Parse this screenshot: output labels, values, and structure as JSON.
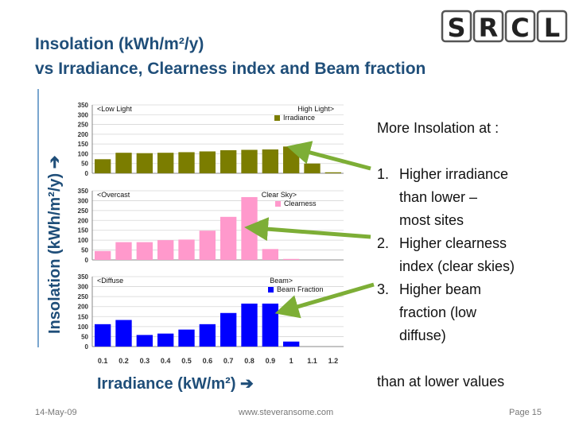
{
  "title": {
    "line1": "Insolation (kWh/m²/y)",
    "line2": "vs Irradiance, Clearness index and Beam fraction"
  },
  "logo": {
    "letters": [
      "S",
      "R",
      "C",
      "L"
    ]
  },
  "y_axis_title": "Insolation (kWh/m²/y)",
  "x_axis_title": "Irradiance (kW/m²)",
  "notes": {
    "intro": "More Insolation at :",
    "items": [
      {
        "num": "1.",
        "lines": [
          "Higher irradiance",
          "than lower –",
          "most sites"
        ]
      },
      {
        "num": "2.",
        "lines": [
          "Higher clearness",
          "index (clear skies)"
        ]
      },
      {
        "num": "3.",
        "lines": [
          "Higher beam",
          "fraction (low",
          "diffuse)"
        ]
      }
    ],
    "outro": "than at lower values"
  },
  "footer": {
    "date": "14-May-09",
    "website": "www.steveransome.com",
    "page": "Page 15"
  },
  "colors": {
    "arrow": "#7dae36",
    "irradiance": "#7b7d00",
    "clearness": "#ff99cc",
    "beam": "#0000ff",
    "title": "#1f4e79"
  },
  "chart_data": [
    {
      "type": "bar",
      "categories": [
        "0.1",
        "0.2",
        "0.3",
        "0.4",
        "0.5",
        "0.6",
        "0.7",
        "0.8",
        "0.9",
        "1",
        "1.1",
        "1.2"
      ],
      "series": [
        {
          "name": "Irradiance",
          "values": [
            72,
            105,
            103,
            105,
            108,
            112,
            118,
            120,
            122,
            137,
            50,
            5
          ]
        }
      ],
      "ylim": [
        0,
        350
      ],
      "yticks": [
        0,
        50,
        100,
        150,
        200,
        250,
        300,
        350
      ],
      "annotations": {
        "left": "<Low Light",
        "right": "High Light>"
      },
      "legend": "top-right",
      "grid": true,
      "color": "#7b7d00"
    },
    {
      "type": "bar",
      "categories": [
        "0.1",
        "0.2",
        "0.3",
        "0.4",
        "0.5",
        "0.6",
        "0.7",
        "0.8",
        "0.9",
        "1",
        "1.1",
        "1.2"
      ],
      "series": [
        {
          "name": "Clearness",
          "values": [
            45,
            90,
            90,
            100,
            103,
            148,
            218,
            318,
            55,
            5,
            0,
            0
          ]
        }
      ],
      "ylim": [
        0,
        350
      ],
      "yticks": [
        0,
        50,
        100,
        150,
        200,
        250,
        300,
        350
      ],
      "annotations": {
        "left": "<Overcast",
        "right": "Clear Sky>"
      },
      "legend": "top-right",
      "grid": true,
      "color": "#ff99cc"
    },
    {
      "type": "bar",
      "categories": [
        "0.1",
        "0.2",
        "0.3",
        "0.4",
        "0.5",
        "0.6",
        "0.7",
        "0.8",
        "0.9",
        "1",
        "1.1",
        "1.2"
      ],
      "series": [
        {
          "name": "Beam Fraction",
          "values": [
            112,
            133,
            58,
            65,
            85,
            112,
            168,
            215,
            215,
            25,
            0,
            0
          ]
        }
      ],
      "ylim": [
        0,
        350
      ],
      "yticks": [
        0,
        50,
        100,
        150,
        200,
        250,
        300,
        350
      ],
      "annotations": {
        "left": "<Diffuse",
        "right": "Beam>"
      },
      "legend": "top-right",
      "grid": true,
      "color": "#0000ff"
    }
  ]
}
